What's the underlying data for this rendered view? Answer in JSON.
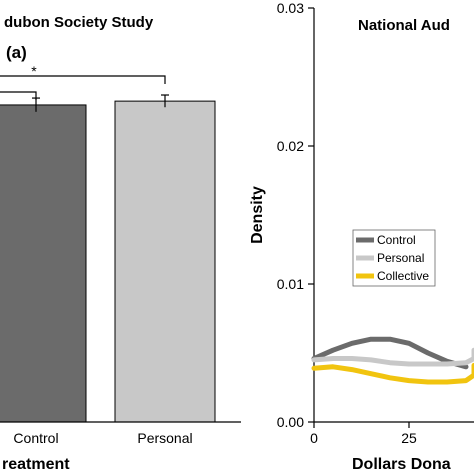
{
  "chart_data": [
    {
      "type": "bar",
      "title": "dubon Society Study",
      "panel_label": "(a)",
      "categories": [
        "Control",
        "Personal"
      ],
      "values": [
        0.83,
        0.84
      ],
      "errors": [
        0.018,
        0.016
      ],
      "bar_colors": [
        "#6b6b6b",
        "#c8c8c8"
      ],
      "xlabel": "reatment",
      "ylabel": "",
      "significance": {
        "marker": "*",
        "comparisons": 2
      },
      "grid": false
    },
    {
      "type": "line",
      "title": "National Aud",
      "xlabel": "Dollars Dona",
      "ylabel": "Density",
      "xlim": [
        0,
        50
      ],
      "ylim": [
        0,
        0.03
      ],
      "xticks": [
        "0",
        "25"
      ],
      "yticks": [
        "0.00",
        "0.01",
        "0.02",
        "0.03"
      ],
      "legend_position": "center-left",
      "grid": false,
      "series": [
        {
          "name": "Control",
          "color": "#6b6b6b",
          "x": [
            0,
            5,
            10,
            15,
            20,
            25,
            30,
            35,
            40
          ],
          "y": [
            0.0046,
            0.0052,
            0.0057,
            0.006,
            0.006,
            0.0057,
            0.005,
            0.0044,
            0.004
          ]
        },
        {
          "name": "Personal",
          "color": "#c8c8c8",
          "x": [
            0,
            5,
            10,
            15,
            20,
            25,
            30,
            35,
            40,
            45,
            50
          ],
          "y": [
            0.0045,
            0.0046,
            0.0046,
            0.0045,
            0.0043,
            0.0042,
            0.0042,
            0.0042,
            0.0043,
            0.0046,
            0.0052
          ]
        },
        {
          "name": "Collective",
          "color": "#f1c40f",
          "x": [
            0,
            5,
            10,
            15,
            20,
            25,
            30,
            35,
            40,
            45,
            50
          ],
          "y": [
            0.0039,
            0.004,
            0.0038,
            0.0035,
            0.0032,
            0.003,
            0.0029,
            0.0029,
            0.003,
            0.0034,
            0.0041
          ]
        }
      ]
    }
  ]
}
